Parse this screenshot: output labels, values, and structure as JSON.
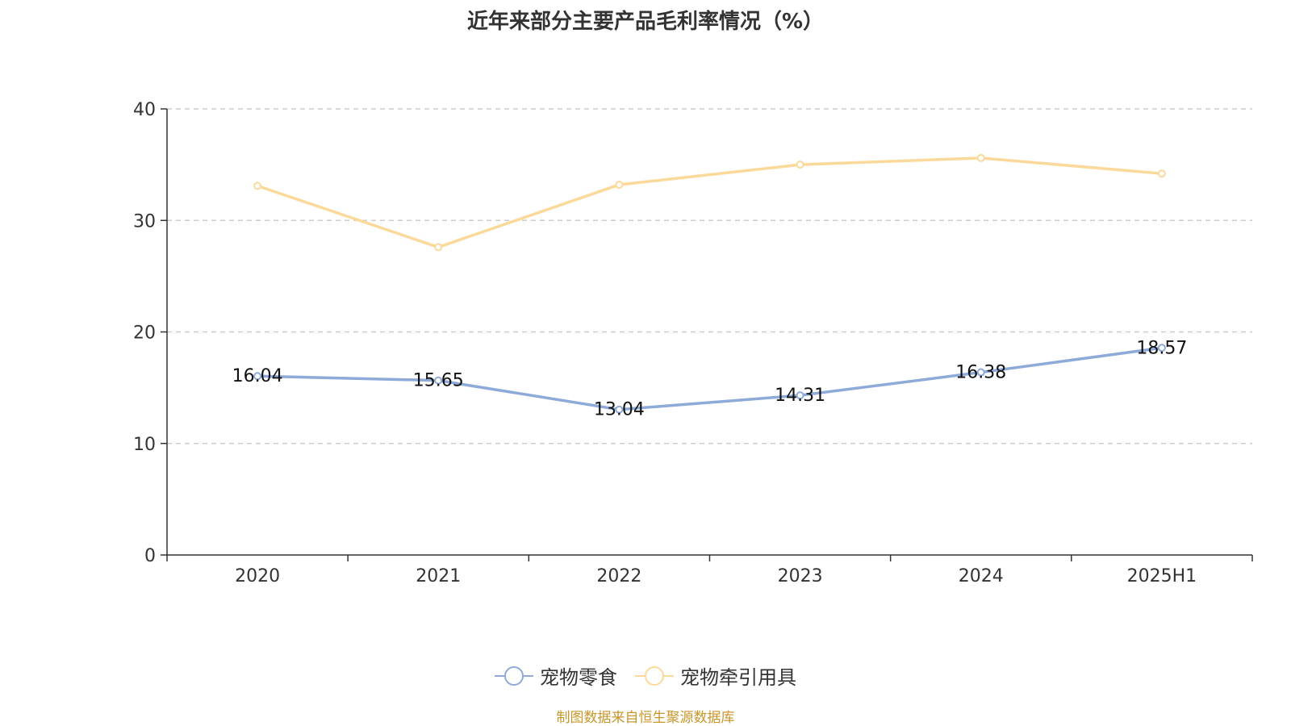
{
  "chart_data": {
    "type": "line",
    "title": "近年来部分主要产品毛利率情况（%）",
    "categories": [
      "2020",
      "2021",
      "2022",
      "2023",
      "2024",
      "2025H1"
    ],
    "ylim": [
      0,
      40
    ],
    "yticks": [
      0,
      10,
      20,
      30,
      40
    ],
    "grid": true,
    "legend_position": "bottom",
    "series": [
      {
        "name": "宠物零食",
        "color": "#8eaad8",
        "values": [
          16.04,
          15.65,
          13.04,
          14.31,
          16.38,
          18.57
        ],
        "labels": [
          "16.04",
          "15.65",
          "13.04",
          "14.31",
          "16.38",
          "18.57"
        ]
      },
      {
        "name": "宠物牵引用具",
        "color": "#fbd99a",
        "values": [
          33.1,
          27.6,
          33.2,
          35.0,
          35.6,
          34.2
        ]
      }
    ]
  },
  "source_note": "制图数据来自恒生聚源数据库"
}
